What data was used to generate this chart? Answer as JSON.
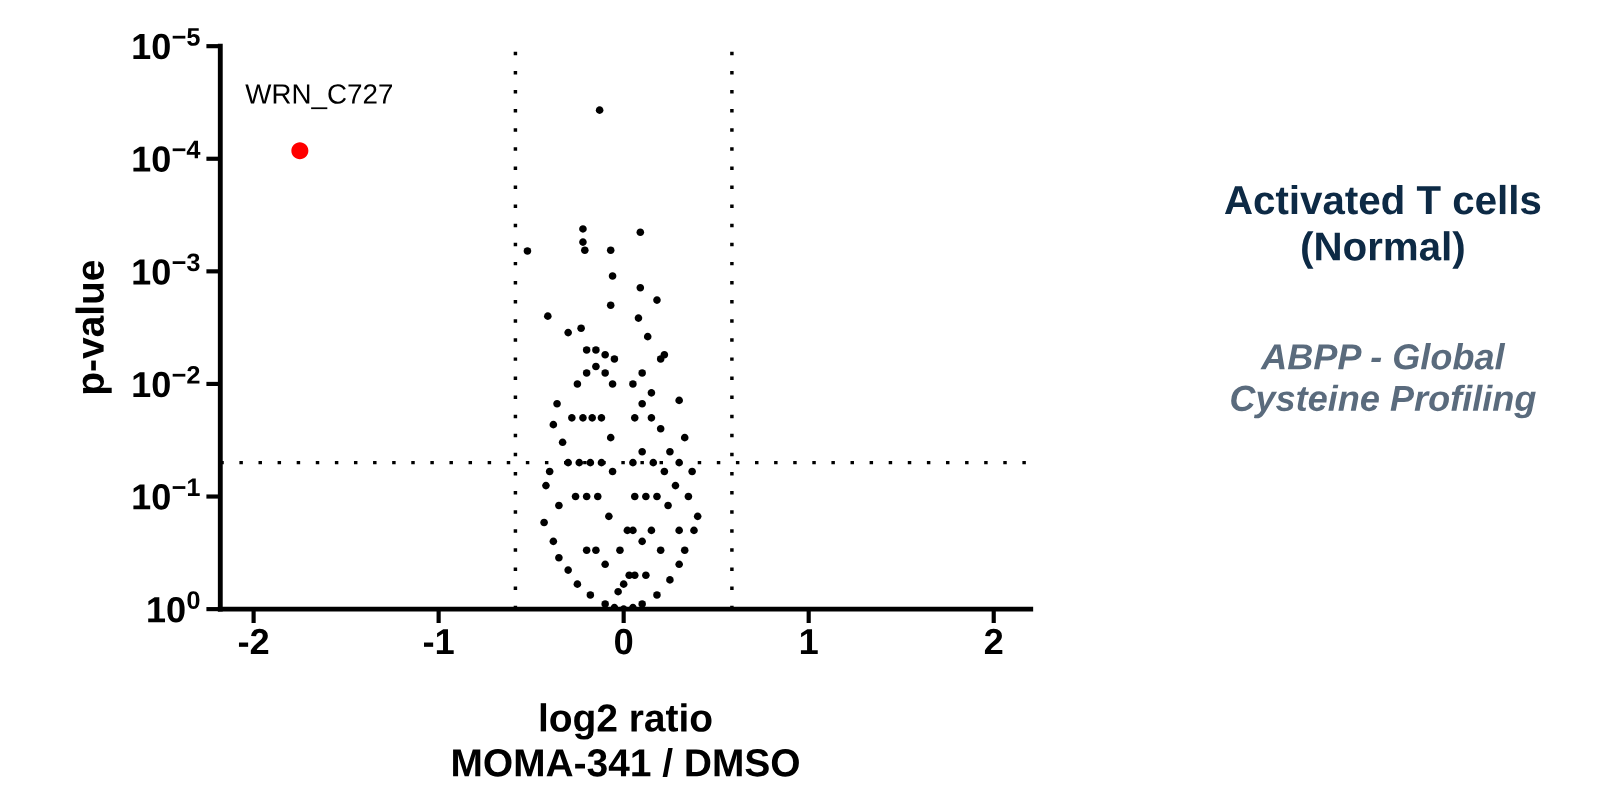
{
  "chart_data": {
    "type": "scatter",
    "title": "Activated T cells\n(Normal)",
    "subtitle": "ABPP - Global\nCysteine Profiling",
    "xlabel": "log2 ratio\nMOMA-341 / DMSO",
    "ylabel": "p-value",
    "xlim": [
      -2.18,
      2.2
    ],
    "xticks": [
      -2,
      -1,
      0,
      1,
      2
    ],
    "log": "y",
    "ylim": [
      1,
      1e-05
    ],
    "yticks": [
      {
        "value": 1e-05,
        "label": "10$^{−5}$"
      },
      {
        "value": 0.0001,
        "label": "10$^{−4}$"
      },
      {
        "value": 0.001,
        "label": "10$^{−3}$"
      },
      {
        "value": 0.01,
        "label": "10$^{−2}$"
      },
      {
        "value": 0.1,
        "label": "10$^{−1}$"
      },
      {
        "value": 1,
        "label": "10$^{0}$"
      }
    ],
    "grid": false,
    "legend": false,
    "marker": "circle",
    "ref_lines": [
      {
        "axis": "x",
        "value": -0.585,
        "color": "#000000",
        "line_style": "dotted"
      },
      {
        "axis": "x",
        "value": 0.585,
        "color": "#000000",
        "line_style": "dotted"
      },
      {
        "axis": "y",
        "value": 0.05,
        "color": "#000000",
        "line_style": "dotted"
      }
    ],
    "annotations": [
      {
        "text": "WRN_C727",
        "x": -1.75,
        "y": 8.5e-05
      }
    ],
    "series": [
      {
        "color": "#000000",
        "x": [
          -0.13,
          -0.22,
          -0.52,
          -0.22,
          -0.21,
          -0.07,
          0.09,
          -0.06,
          -0.07,
          0.09,
          0.18,
          -0.41,
          0.08,
          -0.3,
          -0.23,
          0.13,
          0.22,
          0.2,
          -0.2,
          -0.15,
          -0.1,
          -0.05,
          0.1,
          0.05,
          0.15,
          -0.36,
          -0.38,
          -0.33,
          -0.4,
          -0.42,
          -0.35,
          -0.43,
          -0.38,
          -0.35,
          -0.3,
          -0.25,
          -0.18,
          -0.1,
          -0.05,
          0.0,
          0.3,
          0.33,
          0.3,
          0.37,
          0.35,
          0.4,
          0.38,
          0.33,
          0.3,
          0.25,
          0.18,
          0.1,
          0.05,
          -0.25,
          -0.2,
          -0.15,
          -0.1,
          -0.06,
          -0.28,
          -0.22,
          -0.17,
          -0.12,
          -0.07,
          -0.3,
          -0.24,
          -0.18,
          -0.12,
          -0.06,
          -0.26,
          -0.2,
          -0.14,
          -0.08,
          -0.2,
          -0.15,
          -0.1,
          0.06,
          0.1,
          0.15,
          0.2,
          0.25,
          0.05,
          0.1,
          0.16,
          0.22,
          0.28,
          0.06,
          0.12,
          0.18,
          0.24,
          0.3,
          0.05,
          0.1,
          0.15,
          0.2,
          0.06,
          0.12,
          0.02,
          -0.02,
          0.0,
          0.03,
          -0.03
        ],
        "values": [
          3.7e-05,
          0.00042,
          0.00066,
          0.00055,
          0.00065,
          0.00065,
          0.00045,
          0.0011,
          0.002,
          0.0014,
          0.0018,
          0.0025,
          0.0026,
          0.0035,
          0.0032,
          0.0038,
          0.0055,
          0.006,
          0.005,
          0.005,
          0.0055,
          0.006,
          0.008,
          0.01,
          0.012,
          0.015,
          0.023,
          0.033,
          0.06,
          0.08,
          0.12,
          0.17,
          0.25,
          0.35,
          0.45,
          0.6,
          0.75,
          0.9,
          0.97,
          1.0,
          0.014,
          0.03,
          0.05,
          0.06,
          0.1,
          0.15,
          0.2,
          0.3,
          0.4,
          0.55,
          0.75,
          0.9,
          0.97,
          0.01,
          0.008,
          0.007,
          0.008,
          0.01,
          0.02,
          0.02,
          0.02,
          0.02,
          0.03,
          0.05,
          0.05,
          0.05,
          0.05,
          0.06,
          0.1,
          0.1,
          0.1,
          0.15,
          0.3,
          0.3,
          0.4,
          0.02,
          0.015,
          0.02,
          0.025,
          0.04,
          0.05,
          0.04,
          0.05,
          0.06,
          0.08,
          0.1,
          0.1,
          0.1,
          0.12,
          0.2,
          0.2,
          0.25,
          0.2,
          0.3,
          0.5,
          0.5,
          0.2,
          0.3,
          0.6,
          0.5,
          0.7
        ]
      },
      {
        "color": "#ff0000",
        "x": [
          -1.75
        ],
        "values": [
          8.5e-05
        ]
      }
    ]
  }
}
